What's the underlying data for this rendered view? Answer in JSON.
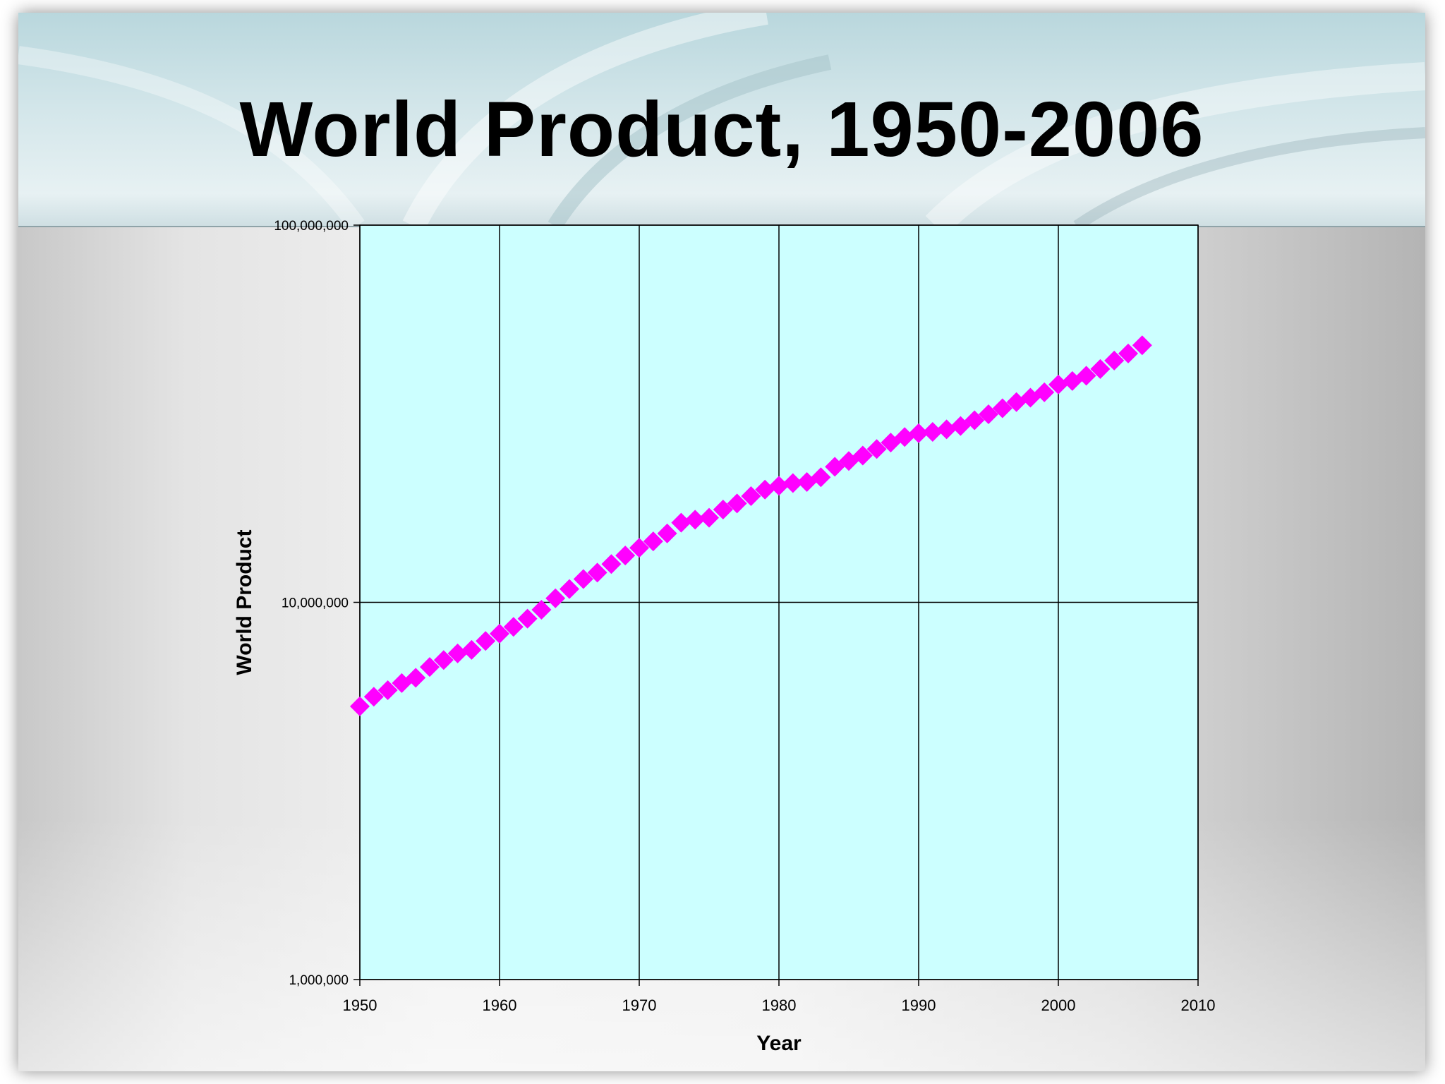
{
  "slide": {
    "title": "World Product, 1950-2006"
  },
  "colors": {
    "plot_background": "#ccffff",
    "marker": "#ff00ff",
    "grid": "#000000"
  },
  "chart_data": {
    "type": "scatter",
    "title": "World Product, 1950-2006",
    "xlabel": "Year",
    "ylabel": "World Product",
    "xlim": [
      1950,
      2010
    ],
    "ylim": [
      1000000,
      100000000
    ],
    "y_scale": "log",
    "grid": true,
    "marker": "diamond",
    "x_ticks": [
      "1950",
      "1960",
      "1970",
      "1980",
      "1990",
      "2000",
      "2010"
    ],
    "y_ticks": [
      {
        "value": 1000000,
        "label": "1,000,000"
      },
      {
        "value": 10000000,
        "label": "10,000,000"
      },
      {
        "value": 100000000,
        "label": "100,000,000"
      }
    ],
    "series": [
      {
        "x": [
          1950,
          1951,
          1952,
          1953,
          1954,
          1955,
          1956,
          1957,
          1958,
          1959,
          1960,
          1961,
          1962,
          1963,
          1964,
          1965,
          1966,
          1967,
          1968,
          1969,
          1970,
          1971,
          1972,
          1973,
          1974,
          1975,
          1976,
          1977,
          1978,
          1979,
          1980,
          1981,
          1982,
          1983,
          1984,
          1985,
          1986,
          1987,
          1988,
          1989,
          1990,
          1991,
          1992,
          1993,
          1994,
          1995,
          1996,
          1997,
          1998,
          1999,
          2000,
          2001,
          2002,
          2003,
          2004,
          2005,
          2006
        ],
        "values": [
          5300000,
          5620000,
          5850000,
          6110000,
          6310000,
          6740000,
          7030000,
          7320000,
          7480000,
          7900000,
          8260000,
          8610000,
          9050000,
          9560000,
          10250000,
          10850000,
          11530000,
          11990000,
          12630000,
          13310000,
          13950000,
          14510000,
          15230000,
          16260000,
          16560000,
          16760000,
          17620000,
          18290000,
          19120000,
          19900000,
          20370000,
          20710000,
          20850000,
          21460000,
          22880000,
          23700000,
          24500000,
          25490000,
          26520000,
          27430000,
          28070000,
          28300000,
          28750000,
          29350000,
          30380000,
          31520000,
          32690000,
          33960000,
          34880000,
          36040000,
          37790000,
          38620000,
          39880000,
          41550000,
          43750000,
          45670000,
          48020000
        ]
      }
    ]
  }
}
